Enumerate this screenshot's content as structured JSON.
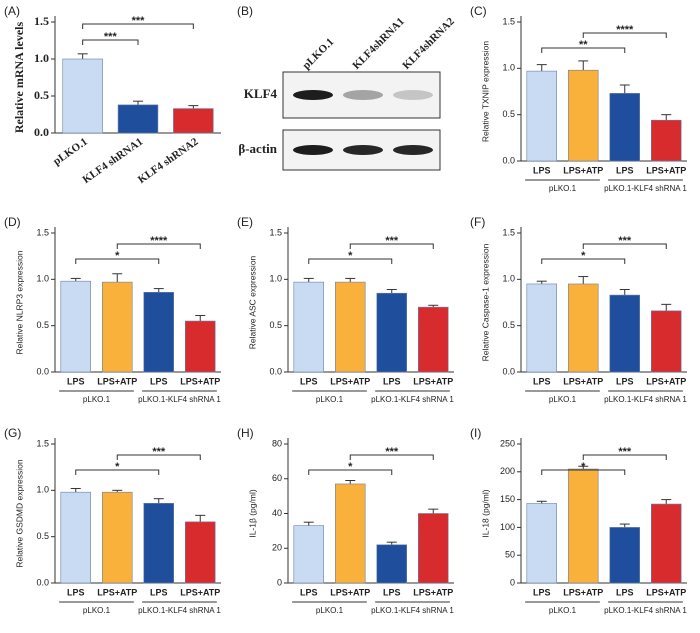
{
  "chart_data": [
    {
      "type": "bar",
      "panel": "(A)",
      "ylabel": "Relative mRNA levels",
      "categories": [
        "pLKO.1",
        "KLF4 shRNA1",
        "KLF4 shRNA2"
      ],
      "values": [
        1.0,
        0.38,
        0.33
      ],
      "errors": [
        0.07,
        0.05,
        0.04
      ],
      "colors": [
        "#c9daf3",
        "#1f4e9c",
        "#d72b2e"
      ],
      "ylim": [
        0,
        1.5
      ],
      "yticks": [
        {
          "value": 0,
          "label": "0.0"
        },
        0.5,
        {
          "value": 1,
          "label": "1.0"
        },
        1.5
      ],
      "significance": [
        "***",
        "***"
      ]
    },
    {
      "type": "blot",
      "panel": "(B)",
      "lanes": [
        "pLKO.1",
        "KLF4shRNA1",
        "KLF4shRNA2"
      ],
      "rows": [
        "KLF4",
        "β-actin"
      ]
    },
    {
      "type": "bar",
      "panel": "(C)",
      "ylabel": "Relative TXNIP expression",
      "categories": [
        "LPS",
        "LPS+ATP",
        "LPS",
        "LPS+ATP"
      ],
      "groups": [
        "pLKO.1",
        "pLKO.1-KLF4 shRNA 1"
      ],
      "values": [
        0.97,
        0.98,
        0.73,
        0.44
      ],
      "errors": [
        0.07,
        0.1,
        0.09,
        0.06
      ],
      "colors": [
        "#c9daf3",
        "#f9b13b",
        "#1f4e9c",
        "#d72b2e"
      ],
      "ylim": [
        0,
        1.5
      ],
      "yticks": [
        {
          "value": 0,
          "label": "0.0"
        },
        0.5,
        {
          "value": 1,
          "label": "1.0"
        },
        1.5
      ],
      "significance": [
        "**",
        "****"
      ]
    },
    {
      "type": "bar",
      "panel": "(D)",
      "ylabel": "Relative NLRP3  expression",
      "categories": [
        "LPS",
        "LPS+ATP",
        "LPS",
        "LPS+ATP"
      ],
      "groups": [
        "pLKO.1",
        "pLKO.1-KLF4 shRNA 1"
      ],
      "values": [
        0.98,
        0.97,
        0.86,
        0.55
      ],
      "errors": [
        0.03,
        0.09,
        0.04,
        0.06
      ],
      "colors": [
        "#c9daf3",
        "#f9b13b",
        "#1f4e9c",
        "#d72b2e"
      ],
      "ylim": [
        0,
        1.5
      ],
      "yticks": [
        {
          "value": 0,
          "label": "0.0"
        },
        0.5,
        {
          "value": 1,
          "label": "1.0"
        },
        1.5
      ],
      "significance": [
        "*",
        "****"
      ]
    },
    {
      "type": "bar",
      "panel": "(E)",
      "ylabel": "Relative ASC  expression",
      "categories": [
        "LPS",
        "LPS+ATP",
        "LPS",
        "LPS+ATP"
      ],
      "groups": [
        "pLKO.1",
        "pLKO.1-KLF4 shRNA 1"
      ],
      "values": [
        0.97,
        0.97,
        0.85,
        0.7
      ],
      "errors": [
        0.04,
        0.04,
        0.04,
        0.02
      ],
      "colors": [
        "#c9daf3",
        "#f9b13b",
        "#1f4e9c",
        "#d72b2e"
      ],
      "ylim": [
        0,
        1.5
      ],
      "yticks": [
        {
          "value": 0,
          "label": "0.0"
        },
        0.5,
        {
          "value": 1,
          "label": "1.0"
        },
        1.5
      ],
      "significance": [
        "*",
        "***"
      ]
    },
    {
      "type": "bar",
      "panel": "(F)",
      "ylabel": "Relative Caspase-1  expression",
      "categories": [
        "LPS",
        "LPS+ATP",
        "LPS",
        "LPS+ATP"
      ],
      "groups": [
        "pLKO.1",
        "pLKO.1-KLF4 shRNA 1"
      ],
      "values": [
        0.95,
        0.95,
        0.83,
        0.66
      ],
      "errors": [
        0.03,
        0.08,
        0.06,
        0.07
      ],
      "colors": [
        "#c9daf3",
        "#f9b13b",
        "#1f4e9c",
        "#d72b2e"
      ],
      "ylim": [
        0,
        1.5
      ],
      "yticks": [
        {
          "value": 0,
          "label": "0.0"
        },
        0.5,
        {
          "value": 1,
          "label": "1.0"
        },
        1.5
      ],
      "significance": [
        "*",
        "***"
      ]
    },
    {
      "type": "bar",
      "panel": "(G)",
      "ylabel": "Relative GSDMD  expression",
      "categories": [
        "LPS",
        "LPS+ATP",
        "LPS",
        "LPS+ATP"
      ],
      "groups": [
        "pLKO.1",
        "pLKO.1-KLF4 shRNA 1"
      ],
      "values": [
        0.98,
        0.98,
        0.86,
        0.66
      ],
      "errors": [
        0.04,
        0.02,
        0.05,
        0.07
      ],
      "colors": [
        "#c9daf3",
        "#f9b13b",
        "#1f4e9c",
        "#d72b2e"
      ],
      "ylim": [
        0,
        1.5
      ],
      "yticks": [
        {
          "value": 0,
          "label": "0.0"
        },
        0.5,
        {
          "value": 1,
          "label": "1.0"
        },
        1.5
      ],
      "significance": [
        "*",
        "***"
      ]
    },
    {
      "type": "bar",
      "panel": "(H)",
      "ylabel": "IL-1β (pg/ml)",
      "categories": [
        "LPS",
        "LPS+ATP",
        "LPS",
        "LPS+ATP"
      ],
      "groups": [
        "pLKO.1",
        "pLKO.1-KLF4 shRNA 1"
      ],
      "values": [
        33,
        57,
        22,
        40
      ],
      "errors": [
        2,
        2,
        1.5,
        2.5
      ],
      "colors": [
        "#c9daf3",
        "#f9b13b",
        "#1f4e9c",
        "#d72b2e"
      ],
      "ylim": [
        0,
        80
      ],
      "yticks": [
        0,
        20,
        40,
        60,
        80
      ],
      "significance": [
        "*",
        "***"
      ]
    },
    {
      "type": "bar",
      "panel": "(I)",
      "ylabel": "IL-18 (pg/ml)",
      "categories": [
        "LPS",
        "LPS+ATP",
        "LPS",
        "LPS+ATP"
      ],
      "groups": [
        "pLKO.1",
        "pLKO.1-KLF4 shRNA 1"
      ],
      "values": [
        143,
        205,
        100,
        142
      ],
      "errors": [
        4,
        5,
        6,
        8
      ],
      "colors": [
        "#c9daf3",
        "#f9b13b",
        "#1f4e9c",
        "#d72b2e"
      ],
      "ylim": [
        0,
        250
      ],
      "yticks": [
        0,
        50,
        100,
        150,
        200,
        250
      ],
      "significance": [
        "*",
        "***"
      ]
    }
  ]
}
